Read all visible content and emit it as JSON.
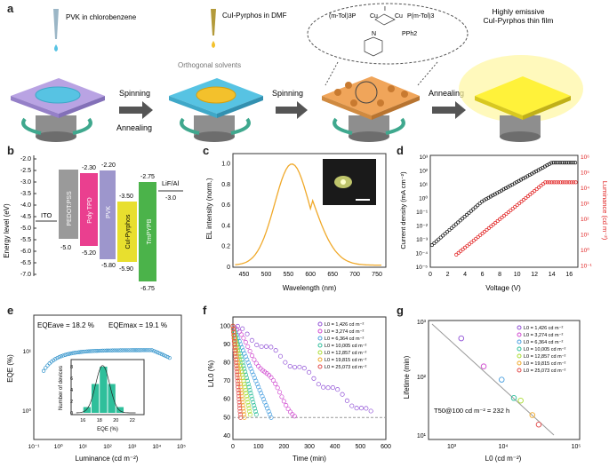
{
  "panels": {
    "a": "a",
    "b": "b",
    "c": "c",
    "d": "d",
    "e": "e",
    "f": "f",
    "g": "g"
  },
  "colors": {
    "pvk_film": "#57c3e3",
    "cu_film": "#f3c12c",
    "substrate": "#b9a3e3",
    "emissive": "#fff23a",
    "arrow": "#555555",
    "spin_arrow": "#3fa88e",
    "pedot": "#9a9a9a",
    "polytpd": "#ea3f8f",
    "pvk": "#9d96cc",
    "cupyrphos": "#e8df2e",
    "tmpypb": "#4bb34a",
    "el_curve": "#f0a92a",
    "current": "#111111",
    "luminance": "#e02020",
    "eqe": "#2a8fc9",
    "hist": "#2fbf9b",
    "lifetime_fit": "#9a9a9a"
  },
  "panel_a": {
    "step1_label": "PVK in chlorobenzene",
    "step2_label": "CuI-Pyrphos in DMF",
    "orthogonal": "Orthogonal solvents",
    "arrow1_top": "Spinning",
    "arrow1_bottom": "Annealing",
    "arrow2": "Spinning",
    "arrow3": "Annealing",
    "result": "Highly emissive CuI-Pyrphos thin film",
    "molecule": {
      "left_ligand": "(m-Tol)3P",
      "cu1": "Cu",
      "cu2": "Cu",
      "iodide": "I",
      "right_ligand": "P(m-Tol)3",
      "pph2": "PPh2",
      "n": "N"
    }
  },
  "panel_b": {
    "ylabel": "Energy level (eV)",
    "yticks": [
      "-2.0",
      "-2.5",
      "-3.0",
      "-3.5",
      "-4.0",
      "-4.5",
      "-5.0",
      "-5.5",
      "-6.0",
      "-6.5",
      "-7.0"
    ],
    "layers": [
      {
        "name": "ITO",
        "top": "",
        "bottom": ""
      },
      {
        "name": "PEDOT:PSS",
        "top": "",
        "bottom": "-5.0"
      },
      {
        "name": "Poly TPD",
        "top": "-2.30",
        "bottom": "-5.20"
      },
      {
        "name": "PVK",
        "top": "-2.20",
        "bottom": "-5.80"
      },
      {
        "name": "CuI-Pyrphos",
        "top": "-3.50",
        "bottom": "-5.90"
      },
      {
        "name": "TmPYPB",
        "top": "-2.75",
        "bottom": "-6.75"
      },
      {
        "name": "LiF/Al",
        "top": "",
        "bottom": "-3.0"
      }
    ]
  },
  "panel_c": {
    "ylabel": "EL intensity (norm.)",
    "xlabel": "Wavelength (nm)",
    "xticks": [
      "450",
      "500",
      "550",
      "600",
      "650",
      "700",
      "750"
    ],
    "yticks": [
      "0",
      "0.2",
      "0.4",
      "0.6",
      "0.8",
      "1.0"
    ]
  },
  "panel_d": {
    "ylabel_left": "Current density (mA cm⁻²)",
    "ylabel_right": "Luminance (cd m⁻²)",
    "xlabel": "Voltage (V)",
    "xticks": [
      "0",
      "2",
      "4",
      "6",
      "8",
      "10",
      "12",
      "14",
      "16"
    ],
    "yticks_left": [
      "10³",
      "10²",
      "10¹",
      "10⁰",
      "10⁻¹",
      "10⁻²",
      "10⁻³",
      "10⁻⁴",
      "10⁻⁵"
    ],
    "yticks_right": [
      "10⁶",
      "10⁵",
      "10⁴",
      "10³",
      "10²",
      "10¹",
      "10⁰",
      "10⁻¹"
    ]
  },
  "panel_e": {
    "eqe_ave": "EQEave = 18.2 %",
    "eqe_max": "EQEmax = 19.1 %",
    "ylabel": "EQE (%)",
    "xlabel": "Luminance (cd m⁻²)",
    "xticks": [
      "10⁻¹",
      "10⁰",
      "10¹",
      "10²",
      "10³",
      "10⁴",
      "10⁵"
    ],
    "yticks": [
      "10¹",
      "10⁰"
    ],
    "inset_ylabel": "Number of devices",
    "inset_xlabel": "EQE (%)",
    "inset_xticks": [
      "16",
      "18",
      "20",
      "22"
    ],
    "inset_yticks": [
      "0",
      "2",
      "4",
      "6",
      "8"
    ]
  },
  "panel_f": {
    "ylabel": "L/L0 (%)",
    "xlabel": "Time (min)",
    "xticks": [
      "0",
      "100",
      "200",
      "300",
      "400",
      "500",
      "600"
    ],
    "yticks": [
      "40",
      "50",
      "60",
      "70",
      "80",
      "90",
      "100"
    ]
  },
  "panel_g": {
    "ylabel": "Lifetime (min)",
    "xlabel": "L0 (cd m⁻²)",
    "xticks": [
      "10³",
      "10⁴",
      "10⁵"
    ],
    "yticks": [
      "10³",
      "10²",
      "10¹"
    ],
    "annotation": "T50@100 cd m⁻² = 232 h"
  },
  "legend": [
    {
      "label": "L0 = 1,426 cd m⁻²",
      "color": "#8f4fd6"
    },
    {
      "label": "L0 = 3,274 cd m⁻²",
      "color": "#d04ad0"
    },
    {
      "label": "L0 = 6,364 cd m⁻²",
      "color": "#4aa0e0"
    },
    {
      "label": "L0 = 10,005 cd m⁻²",
      "color": "#2fbf9b"
    },
    {
      "label": "L0 = 12,857 cd m⁻²",
      "color": "#aadd33"
    },
    {
      "label": "L0 = 19,815 cd m⁻²",
      "color": "#f0a92a"
    },
    {
      "label": "L0 = 25,073 cd m⁻²",
      "color": "#e24a4a"
    }
  ]
}
